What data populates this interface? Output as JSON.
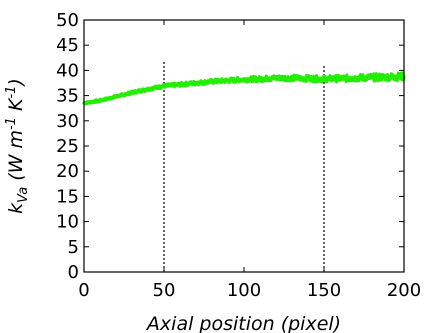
{
  "chart_data": {
    "type": "line",
    "title": "",
    "xlabel": "Axial position (pixel)",
    "ylabel": {
      "main": "k",
      "subscript": "Va",
      "unit_prefix": " (W m",
      "sup1": "-1",
      "unit_mid": " K",
      "sup2": "-1",
      "unit_suffix": ")"
    },
    "xlim": [
      0,
      200
    ],
    "ylim": [
      0,
      50
    ],
    "xticks": [
      "0",
      "50",
      "100",
      "150",
      "200"
    ],
    "yticks": [
      "0",
      "5",
      "10",
      "15",
      "20",
      "25",
      "30",
      "35",
      "40",
      "45",
      "50"
    ],
    "grid": false,
    "legend": "none",
    "series": [
      {
        "color": "#22ee00",
        "x": [
          0,
          10,
          20,
          30,
          40,
          50,
          60,
          70,
          80,
          90,
          100,
          110,
          120,
          130,
          140,
          150,
          160,
          170,
          180,
          190,
          200
        ],
        "values": [
          33.5,
          34.0,
          34.8,
          35.6,
          36.3,
          36.9,
          37.2,
          37.5,
          37.8,
          38.0,
          38.2,
          38.3,
          38.5,
          38.5,
          38.4,
          38.3,
          38.4,
          38.5,
          38.6,
          38.7,
          38.8
        ]
      }
    ],
    "vlines": [
      {
        "x": 50,
        "y_top": 42,
        "style": "dotted",
        "color": "#000000"
      },
      {
        "x": 150,
        "y_top": 41,
        "style": "dotted",
        "color": "#000000"
      }
    ]
  }
}
